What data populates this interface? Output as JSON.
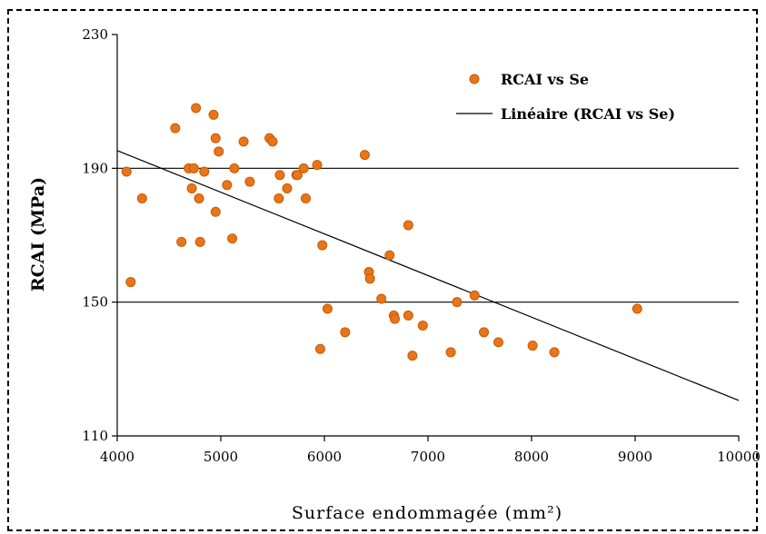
{
  "chart_data": {
    "type": "scatter",
    "title": "",
    "xlabel": "Surface endommagée (mm²)",
    "ylabel": "RCAI (MPa)",
    "xlim": [
      4000,
      10000
    ],
    "ylim": [
      110,
      230
    ],
    "xticks": [
      "4000",
      "5000",
      "6000",
      "7000",
      "8000",
      "9000",
      "10000"
    ],
    "yticks": [
      "110",
      "150",
      "190",
      "230"
    ],
    "grid": "horizontal lines at 150 and 190",
    "legend_position": "top-right",
    "series": [
      {
        "name": "RCAI vs Se",
        "type": "scatter",
        "color": "#e8751a",
        "points": [
          [
            4090,
            189
          ],
          [
            4130,
            156
          ],
          [
            4240,
            181
          ],
          [
            4560,
            202
          ],
          [
            4620,
            168
          ],
          [
            4690,
            190
          ],
          [
            4720,
            184
          ],
          [
            4740,
            190
          ],
          [
            4760,
            208
          ],
          [
            4790,
            181
          ],
          [
            4800,
            168
          ],
          [
            4840,
            189
          ],
          [
            4930,
            206
          ],
          [
            4950,
            199
          ],
          [
            4950,
            177
          ],
          [
            4980,
            195
          ],
          [
            5060,
            185
          ],
          [
            5110,
            169
          ],
          [
            5130,
            190
          ],
          [
            5220,
            198
          ],
          [
            5280,
            186
          ],
          [
            5470,
            199
          ],
          [
            5500,
            198
          ],
          [
            5560,
            181
          ],
          [
            5570,
            188
          ],
          [
            5640,
            184
          ],
          [
            5730,
            188
          ],
          [
            5740,
            188
          ],
          [
            5800,
            190
          ],
          [
            5820,
            181
          ],
          [
            5930,
            191
          ],
          [
            5960,
            136
          ],
          [
            5980,
            167
          ],
          [
            6030,
            148
          ],
          [
            6200,
            141
          ],
          [
            6390,
            194
          ],
          [
            6430,
            159
          ],
          [
            6440,
            157
          ],
          [
            6550,
            151
          ],
          [
            6630,
            164
          ],
          [
            6670,
            146
          ],
          [
            6680,
            145
          ],
          [
            6810,
            146
          ],
          [
            6810,
            173
          ],
          [
            6850,
            134
          ],
          [
            6950,
            143
          ],
          [
            7220,
            135
          ],
          [
            7280,
            150
          ],
          [
            7450,
            152
          ],
          [
            7540,
            141
          ],
          [
            7680,
            138
          ],
          [
            8010,
            137
          ],
          [
            8220,
            135
          ],
          [
            9020,
            148
          ]
        ]
      },
      {
        "name": "Linéaire (RCAI vs Se)",
        "type": "line",
        "color": "#000000",
        "x": [
          4000,
          10000
        ],
        "y": [
          195.3,
          120.6
        ]
      }
    ]
  }
}
